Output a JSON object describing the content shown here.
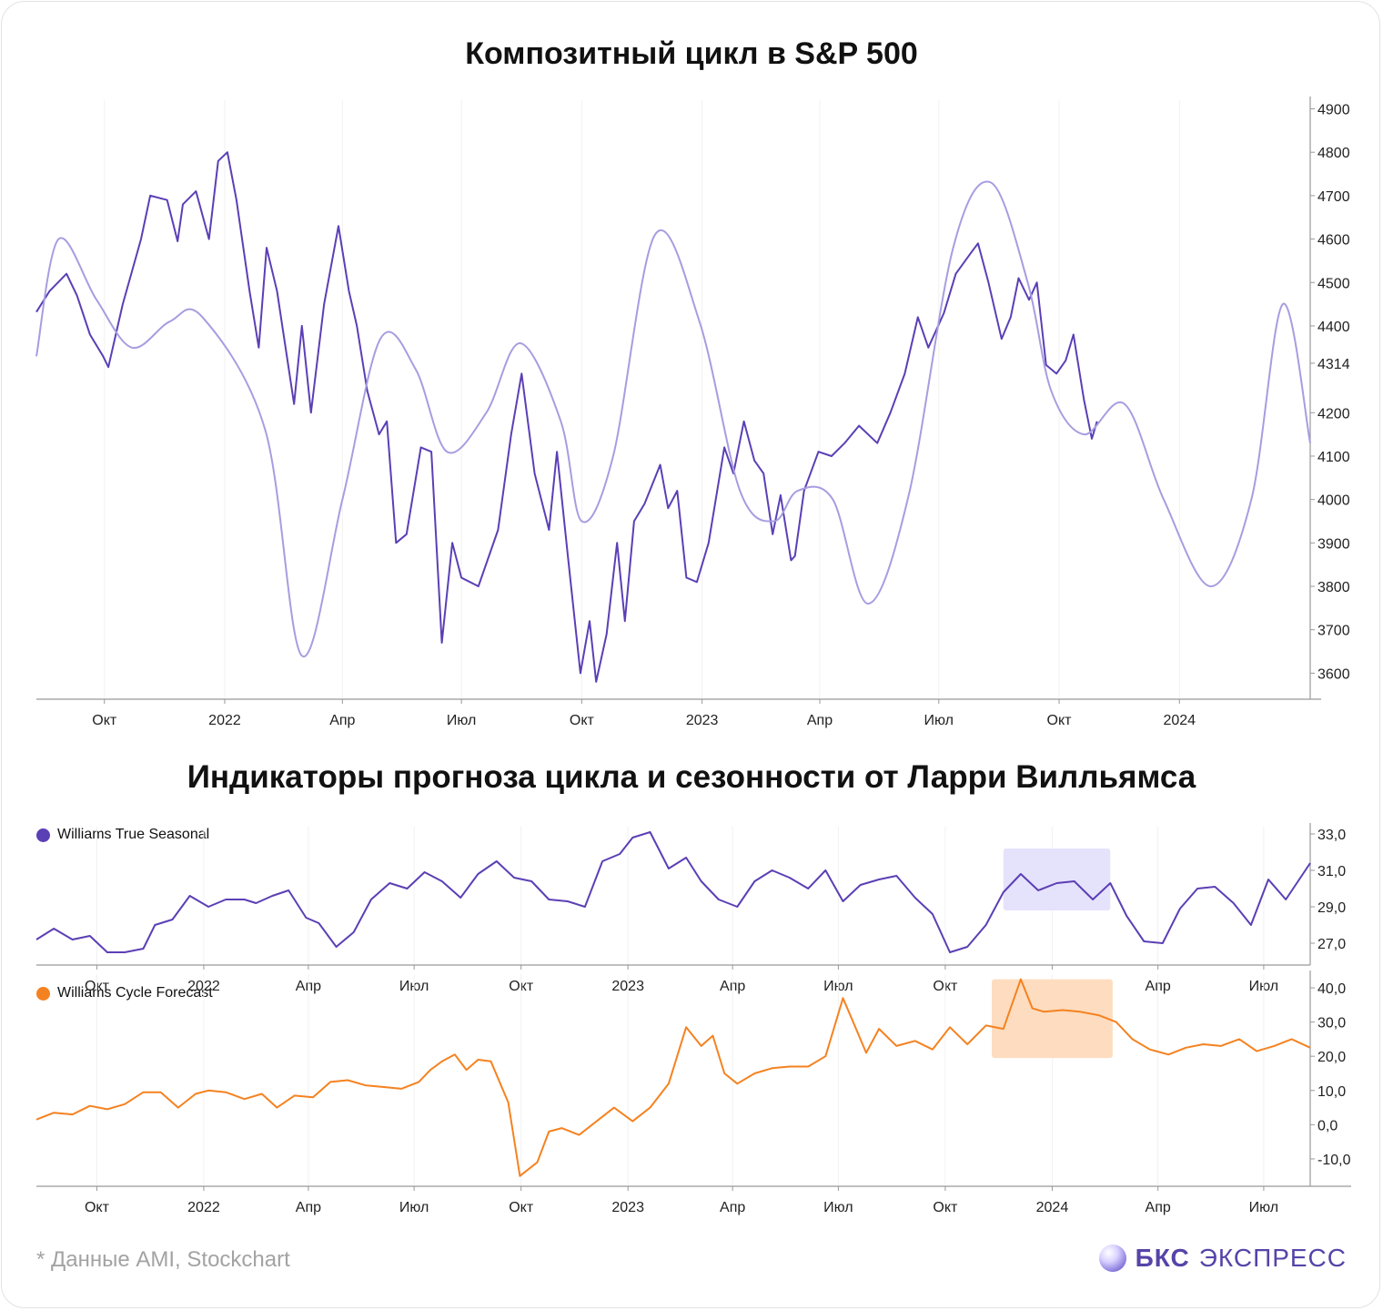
{
  "titles": {
    "top": "Композитный цикл в S&P 500",
    "bottom": "Индикаторы прогноза цикла и сезонности от Ларри Вилльямса"
  },
  "footnote": "* Данные AMI, Stockchart",
  "brand": {
    "bold": "БКС",
    "light": "ЭКСПРЕСС"
  },
  "colors": {
    "price": "#5b3fb5",
    "cycle": "#a79de0",
    "seasonal": "#5b3fb5",
    "forecast": "#f58220",
    "seasonal_highlight": "#e5e2fb",
    "forecast_highlight": "#fddcbf"
  },
  "chart_data": [
    {
      "type": "line",
      "title": "Композитный цикл в S&P 500",
      "x_ticks": [
        "Окт",
        "2022",
        "Апр",
        "Июл",
        "Окт",
        "2023",
        "Апр",
        "Июл",
        "Окт",
        "2024"
      ],
      "y_ticks": [
        "4900",
        "4800",
        "4700",
        "4600",
        "4500",
        "4400",
        "4314",
        "4200",
        "4100",
        "4000",
        "3900",
        "3800",
        "3700",
        "3600"
      ],
      "ylim": [
        3540,
        4920
      ],
      "xlim": [
        "2021-08-10",
        "2024-04-10"
      ],
      "series": [
        {
          "role": "S&P 500",
          "x": [
            "2021-08-10",
            "2021-08-20",
            "2021-09-02",
            "2021-09-10",
            "2021-09-20",
            "2021-09-30",
            "2021-10-04",
            "2021-10-15",
            "2021-10-29",
            "2021-11-05",
            "2021-11-18",
            "2021-11-26",
            "2021-11-30",
            "2021-12-10",
            "2021-12-20",
            "2021-12-27",
            "2022-01-03",
            "2022-01-10",
            "2022-01-20",
            "2022-01-27",
            "2022-02-02",
            "2022-02-10",
            "2022-02-23",
            "2022-03-01",
            "2022-03-08",
            "2022-03-18",
            "2022-03-29",
            "2022-04-06",
            "2022-04-12",
            "2022-04-20",
            "2022-04-29",
            "2022-05-05",
            "2022-05-12",
            "2022-05-20",
            "2022-05-31",
            "2022-06-08",
            "2022-06-16",
            "2022-06-24",
            "2022-07-01",
            "2022-07-14",
            "2022-07-29",
            "2022-08-08",
            "2022-08-16",
            "2022-08-26",
            "2022-09-06",
            "2022-09-12",
            "2022-09-20",
            "2022-09-30",
            "2022-10-07",
            "2022-10-12",
            "2022-10-20",
            "2022-10-28",
            "2022-11-03",
            "2022-11-10",
            "2022-11-18",
            "2022-11-30",
            "2022-12-06",
            "2022-12-13",
            "2022-12-20",
            "2022-12-28",
            "2023-01-06",
            "2023-01-18",
            "2023-01-25",
            "2023-02-02",
            "2023-02-10",
            "2023-02-17",
            "2023-02-24",
            "2023-03-02",
            "2023-03-10",
            "2023-03-13",
            "2023-03-20",
            "2023-03-31",
            "2023-04-10",
            "2023-04-20",
            "2023-05-01",
            "2023-05-15",
            "2023-05-25",
            "2023-06-05",
            "2023-06-15",
            "2023-06-23",
            "2023-07-05",
            "2023-07-14",
            "2023-07-26",
            "2023-07-31",
            "2023-08-08",
            "2023-08-18",
            "2023-08-25",
            "2023-08-31",
            "2023-09-08",
            "2023-09-14",
            "2023-09-21",
            "2023-09-29",
            "2023-10-06",
            "2023-10-12",
            "2023-10-20",
            "2023-10-26",
            "2023-10-30"
          ],
          "y": [
            4432,
            4480,
            4520,
            4470,
            4380,
            4330,
            4305,
            4450,
            4600,
            4700,
            4690,
            4595,
            4680,
            4710,
            4600,
            4780,
            4800,
            4690,
            4480,
            4350,
            4580,
            4480,
            4220,
            4400,
            4200,
            4450,
            4630,
            4480,
            4400,
            4250,
            4150,
            4180,
            3900,
            3920,
            4120,
            4110,
            3670,
            3900,
            3820,
            3800,
            3930,
            4150,
            4290,
            4060,
            3930,
            4110,
            3880,
            3600,
            3720,
            3580,
            3690,
            3900,
            3720,
            3950,
            3990,
            4080,
            3980,
            4020,
            3820,
            3810,
            3900,
            4120,
            4060,
            4180,
            4090,
            4060,
            3920,
            4010,
            3860,
            3870,
            4020,
            4110,
            4100,
            4130,
            4170,
            4130,
            4200,
            4290,
            4420,
            4350,
            4430,
            4520,
            4570,
            4590,
            4500,
            4370,
            4420,
            4510,
            4460,
            4500,
            4310,
            4290,
            4320,
            4380,
            4230,
            4140,
            4180
          ]
        },
        {
          "role": "cycle",
          "x": [
            "2021-08-10",
            "2021-08-27",
            "2021-09-25",
            "2021-10-22",
            "2021-11-20",
            "2021-12-15",
            "2022-02-01",
            "2022-03-01",
            "2022-04-01",
            "2022-04-30",
            "2022-05-27",
            "2022-06-20",
            "2022-07-20",
            "2022-08-15",
            "2022-09-15",
            "2022-10-01",
            "2022-10-25",
            "2022-11-26",
            "2022-12-30",
            "2023-01-30",
            "2023-02-25",
            "2023-03-15",
            "2023-04-11",
            "2023-05-08",
            "2023-06-08",
            "2023-07-12",
            "2023-08-10",
            "2023-09-07",
            "2023-09-25",
            "2023-10-20",
            "2023-11-20",
            "2023-12-20",
            "2024-01-25",
            "2024-02-25",
            "2024-03-20",
            "2024-04-10"
          ],
          "y": [
            4330,
            4600,
            4460,
            4350,
            4410,
            4420,
            4160,
            3640,
            4000,
            4370,
            4300,
            4110,
            4200,
            4360,
            4180,
            3950,
            4100,
            4610,
            4410,
            4020,
            3950,
            4020,
            4000,
            3760,
            4010,
            4580,
            4730,
            4500,
            4250,
            4150,
            4220,
            4000,
            3800,
            4000,
            4450,
            4130
          ]
        }
      ]
    },
    {
      "type": "line",
      "legend": "Williams True Seasonal",
      "x_ticks": [
        "Окт",
        "2022",
        "Апр",
        "Июл",
        "Окт",
        "2023",
        "Апр",
        "Июл",
        "Окт",
        "2024",
        "Апр",
        "Июл"
      ],
      "y_ticks": [
        "33,0",
        "31,0",
        "29,0",
        "27,0"
      ],
      "ylim": [
        25.8,
        33.4
      ],
      "xlim": [
        "2021-08-10",
        "2024-08-10"
      ],
      "highlight": {
        "x0": "2023-11-20",
        "x1": "2024-02-20",
        "y0": 28.8,
        "y1": 32.2
      },
      "series": [
        {
          "name": "Williams True Seasonal",
          "x": [
            "2021-08-10",
            "2021-08-25",
            "2021-09-10",
            "2021-09-25",
            "2021-10-10",
            "2021-10-25",
            "2021-11-10",
            "2021-11-20",
            "2021-12-05",
            "2021-12-20",
            "2022-01-05",
            "2022-01-20",
            "2022-02-05",
            "2022-02-15",
            "2022-03-01",
            "2022-03-15",
            "2022-03-30",
            "2022-04-10",
            "2022-04-25",
            "2022-05-10",
            "2022-05-25",
            "2022-06-10",
            "2022-06-25",
            "2022-07-10",
            "2022-07-25",
            "2022-08-10",
            "2022-08-25",
            "2022-09-10",
            "2022-09-25",
            "2022-10-10",
            "2022-10-25",
            "2022-11-10",
            "2022-11-25",
            "2022-12-10",
            "2022-12-25",
            "2023-01-05",
            "2023-01-20",
            "2023-02-05",
            "2023-02-20",
            "2023-03-05",
            "2023-03-20",
            "2023-04-05",
            "2023-04-20",
            "2023-05-05",
            "2023-05-20",
            "2023-06-05",
            "2023-06-20",
            "2023-07-05",
            "2023-07-20",
            "2023-08-05",
            "2023-08-20",
            "2023-09-05",
            "2023-09-20",
            "2023-10-05",
            "2023-10-20",
            "2023-11-05",
            "2023-11-20",
            "2023-12-05",
            "2023-12-20",
            "2024-01-05",
            "2024-01-20",
            "2024-02-05",
            "2024-02-20",
            "2024-03-05",
            "2024-03-20",
            "2024-04-05",
            "2024-04-20",
            "2024-05-05",
            "2024-05-20",
            "2024-06-05",
            "2024-06-20",
            "2024-07-05",
            "2024-07-20",
            "2024-08-10"
          ],
          "y": [
            27.2,
            27.8,
            27.2,
            27.4,
            26.5,
            26.5,
            26.7,
            28.0,
            28.3,
            29.6,
            29.0,
            29.4,
            29.4,
            29.2,
            29.6,
            29.9,
            28.4,
            28.1,
            26.8,
            27.6,
            29.4,
            30.3,
            30.0,
            30.9,
            30.4,
            29.5,
            30.8,
            31.5,
            30.6,
            30.4,
            29.4,
            29.3,
            29.0,
            31.5,
            31.9,
            32.8,
            33.1,
            31.1,
            31.7,
            30.4,
            29.4,
            29.0,
            30.4,
            31.0,
            30.6,
            30.0,
            31.0,
            29.3,
            30.2,
            30.5,
            30.7,
            29.5,
            28.6,
            26.5,
            26.8,
            28.0,
            29.8,
            30.8,
            29.9,
            30.3,
            30.4,
            29.4,
            30.3,
            28.5,
            27.1,
            27.0,
            28.9,
            30.0,
            30.1,
            29.2,
            28.0,
            30.5,
            29.4,
            31.4
          ]
        }
      ]
    },
    {
      "type": "line",
      "legend": "Williams Cycle Forecast",
      "x_ticks": [
        "Окт",
        "2022",
        "Апр",
        "Июл",
        "Окт",
        "2023",
        "Апр",
        "Июл",
        "Окт",
        "2024",
        "Апр",
        "Июл"
      ],
      "y_ticks": [
        "40,0",
        "30,0",
        "20,0",
        "10,0",
        "0,0",
        "-10,0"
      ],
      "ylim": [
        -18,
        44
      ],
      "xlim": [
        "2021-08-10",
        "2024-08-10"
      ],
      "highlight": {
        "x0": "2023-11-10",
        "x1": "2024-02-22",
        "y0": 19.5,
        "y1": 42.5
      },
      "series": [
        {
          "name": "Williams Cycle Forecast",
          "x": [
            "2021-08-10",
            "2021-08-25",
            "2021-09-10",
            "2021-09-25",
            "2021-10-10",
            "2021-10-25",
            "2021-11-10",
            "2021-11-25",
            "2021-12-10",
            "2021-12-25",
            "2022-01-05",
            "2022-01-20",
            "2022-02-05",
            "2022-02-20",
            "2022-03-05",
            "2022-03-20",
            "2022-04-05",
            "2022-04-20",
            "2022-05-05",
            "2022-05-20",
            "2022-06-05",
            "2022-06-20",
            "2022-07-05",
            "2022-07-15",
            "2022-07-25",
            "2022-08-05",
            "2022-08-15",
            "2022-08-25",
            "2022-09-05",
            "2022-09-20",
            "2022-09-30",
            "2022-10-15",
            "2022-10-25",
            "2022-11-05",
            "2022-11-20",
            "2022-12-05",
            "2022-12-20",
            "2023-01-05",
            "2023-01-20",
            "2023-02-05",
            "2023-02-20",
            "2023-03-05",
            "2023-03-15",
            "2023-03-25",
            "2023-04-05",
            "2023-04-20",
            "2023-05-05",
            "2023-05-20",
            "2023-06-05",
            "2023-06-20",
            "2023-07-05",
            "2023-07-15",
            "2023-07-25",
            "2023-08-05",
            "2023-08-20",
            "2023-09-05",
            "2023-09-20",
            "2023-10-05",
            "2023-10-20",
            "2023-11-05",
            "2023-11-20",
            "2023-12-05",
            "2023-12-15",
            "2023-12-25",
            "2024-01-10",
            "2024-01-25",
            "2024-02-10",
            "2024-02-25",
            "2024-03-10",
            "2024-03-25",
            "2024-04-10",
            "2024-04-25",
            "2024-05-10",
            "2024-05-25",
            "2024-06-10",
            "2024-06-25",
            "2024-07-10",
            "2024-07-25",
            "2024-08-10"
          ],
          "y": [
            1.5,
            3.5,
            3.0,
            5.5,
            4.5,
            6.0,
            9.5,
            9.5,
            5.0,
            9.0,
            10.0,
            9.5,
            7.5,
            9.0,
            5.0,
            8.5,
            8.0,
            12.5,
            13.0,
            11.5,
            11.0,
            10.5,
            12.5,
            16.0,
            18.5,
            20.5,
            16.0,
            19.0,
            18.5,
            6.5,
            -15.0,
            -11.0,
            -2.0,
            -1.0,
            -3.0,
            1.0,
            5.0,
            1.0,
            5.0,
            12.0,
            28.5,
            23.0,
            26.0,
            15.0,
            12.0,
            15.0,
            16.5,
            17.0,
            17.0,
            20.0,
            37.0,
            29.0,
            21.0,
            28.0,
            23.0,
            24.5,
            22.0,
            28.5,
            23.5,
            29.0,
            28.0,
            42.5,
            34.0,
            33.0,
            33.5,
            33.0,
            32.0,
            30.0,
            25.0,
            22.0,
            20.5,
            22.5,
            23.5,
            23.0,
            25.0,
            21.5,
            23.0,
            25.0,
            22.5
          ]
        }
      ]
    }
  ]
}
